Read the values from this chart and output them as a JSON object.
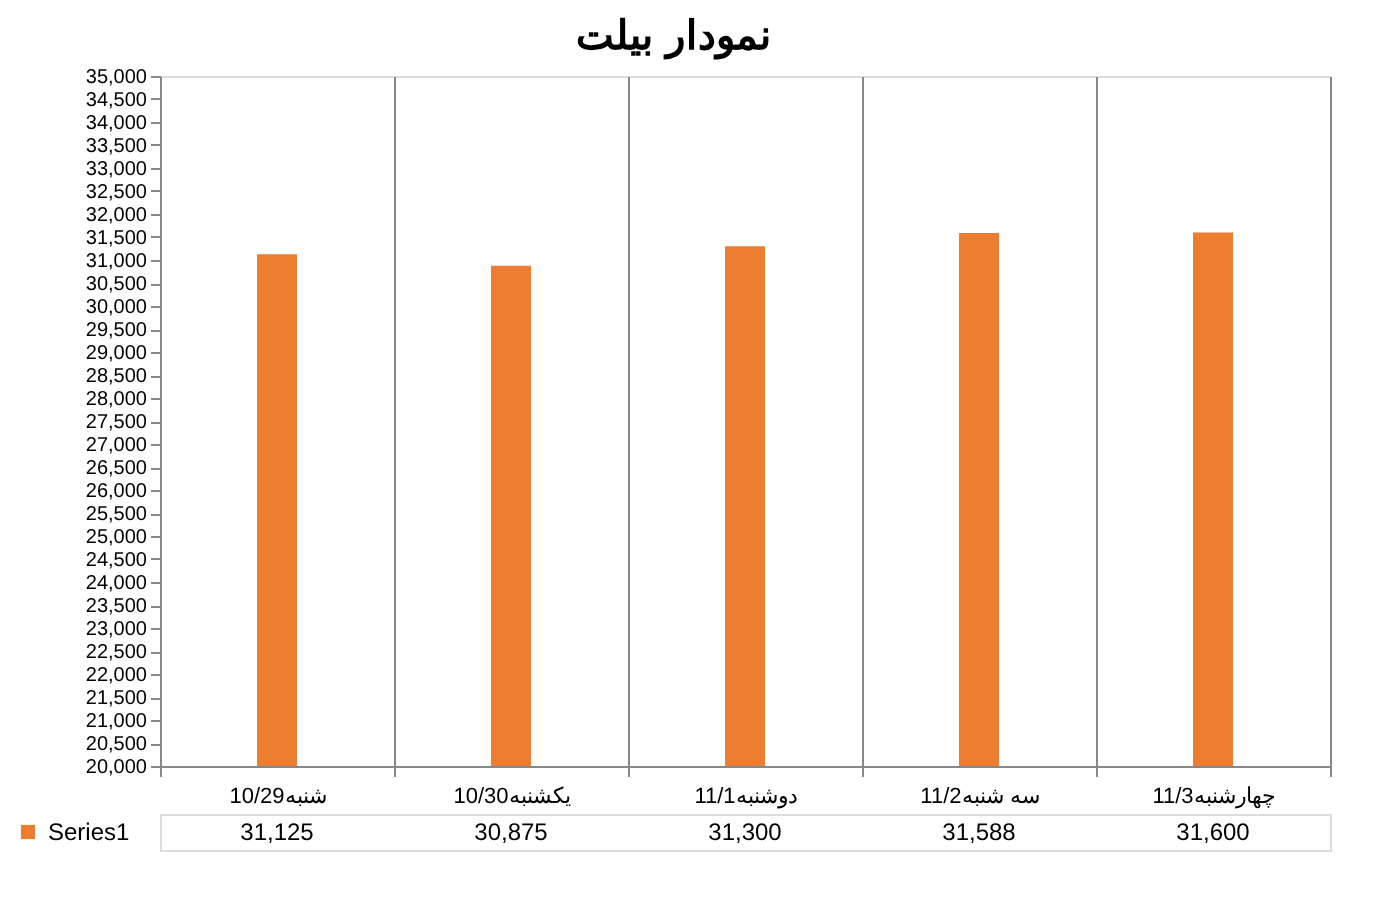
{
  "chart_data": {
    "type": "bar",
    "title": "نمودار بیلت",
    "categories": [
      "10/29شنبه",
      "10/30یکشنبه",
      "11/1دوشنبه",
      "11/2سه شنبه",
      "11/3چهارشنبه"
    ],
    "series": [
      {
        "name": "Series1",
        "color": "#ed7d31",
        "values": [
          31125,
          30875,
          31300,
          31588,
          31600
        ]
      }
    ],
    "ylim": [
      20000,
      35000
    ],
    "yticks": [
      {
        "value": 20000,
        "label": "20,000"
      },
      {
        "value": 20500,
        "label": "20,500"
      },
      {
        "value": 21000,
        "label": "21,000"
      },
      {
        "value": 21500,
        "label": "21,500"
      },
      {
        "value": 22000,
        "label": "22,000"
      },
      {
        "value": 22500,
        "label": "22,500"
      },
      {
        "value": 23000,
        "label": "23,000"
      },
      {
        "value": 23500,
        "label": "23,500"
      },
      {
        "value": 24000,
        "label": "24,000"
      },
      {
        "value": 24500,
        "label": "24,500"
      },
      {
        "value": 25000,
        "label": "25,000"
      },
      {
        "value": 25500,
        "label": "25,500"
      },
      {
        "value": 26000,
        "label": "26,000"
      },
      {
        "value": 26500,
        "label": "26,500"
      },
      {
        "value": 27000,
        "label": "27,000"
      },
      {
        "value": 27500,
        "label": "27,500"
      },
      {
        "value": 28000,
        "label": "28,000"
      },
      {
        "value": 28500,
        "label": "28,500"
      },
      {
        "value": 29000,
        "label": "29,000"
      },
      {
        "value": 29500,
        "label": "29,500"
      },
      {
        "value": 30000,
        "label": "30,000"
      },
      {
        "value": 30500,
        "label": "30,500"
      },
      {
        "value": 31000,
        "label": "31,000"
      },
      {
        "value": 31500,
        "label": "31,500"
      },
      {
        "value": 32000,
        "label": "32,000"
      },
      {
        "value": 32500,
        "label": "32,500"
      },
      {
        "value": 33000,
        "label": "33,000"
      },
      {
        "value": 33500,
        "label": "33,500"
      },
      {
        "value": 34000,
        "label": "34,000"
      },
      {
        "value": 34500,
        "label": "34,500"
      },
      {
        "value": 35000,
        "label": "35,000"
      }
    ],
    "grid": "x",
    "legend": "bottom left",
    "value_labels": [
      "31,125",
      "30,875",
      "31,300",
      "31,588",
      "31,600"
    ]
  }
}
